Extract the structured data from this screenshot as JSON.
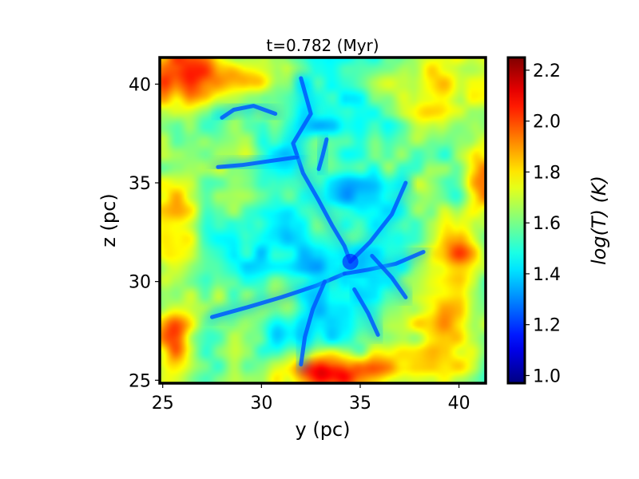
{
  "chart_data": {
    "type": "heatmap",
    "title": "t=0.782 (Myr)",
    "xlabel": "y (pc)",
    "ylabel": "z (pc)",
    "xlim": [
      24.85,
      41.35
    ],
    "ylim": [
      24.85,
      41.35
    ],
    "xticks": [
      25,
      30,
      35,
      40
    ],
    "yticks": [
      25,
      30,
      35,
      40
    ],
    "colorbar": {
      "label": "log(T) (K)",
      "range": [
        0.97,
        2.25
      ],
      "ticks": [
        "1.0",
        "1.2",
        "1.4",
        "1.6",
        "1.8",
        "2.0",
        "2.2"
      ],
      "colormap": "jet"
    },
    "field": {
      "background_logT": 1.62,
      "hot_regions": [
        {
          "y": 26.0,
          "z": 40.6,
          "sy": 2.2,
          "sz": 1.8,
          "value": 2.05
        },
        {
          "y": 33.8,
          "z": 25.4,
          "sy": 2.2,
          "sz": 1.0,
          "value": 2.2
        },
        {
          "y": 39.5,
          "z": 40.0,
          "sy": 1.5,
          "sz": 1.6,
          "value": 1.95
        },
        {
          "y": 26.0,
          "z": 33.0,
          "sy": 1.5,
          "sz": 2.0,
          "value": 1.85
        },
        {
          "y": 25.6,
          "z": 27.5,
          "sy": 1.0,
          "sz": 2.0,
          "value": 1.9
        },
        {
          "y": 39.0,
          "z": 27.5,
          "sy": 1.8,
          "sz": 1.5,
          "value": 1.95
        },
        {
          "y": 41.0,
          "z": 35.0,
          "sy": 1.0,
          "sz": 2.0,
          "value": 1.9
        },
        {
          "y": 40.0,
          "z": 31.5,
          "sy": 1.2,
          "sz": 1.0,
          "value": 1.8
        },
        {
          "y": 29.5,
          "z": 40.5,
          "sy": 1.5,
          "sz": 0.8,
          "value": 1.8
        }
      ],
      "cool_regions": [
        {
          "y": 33.0,
          "z": 37.5,
          "sy": 4.0,
          "sz": 3.0,
          "value": 1.45
        },
        {
          "y": 31.5,
          "z": 31.5,
          "sy": 3.5,
          "sz": 3.0,
          "value": 1.45
        },
        {
          "y": 36.0,
          "z": 33.0,
          "sy": 2.5,
          "sz": 3.0,
          "value": 1.48
        },
        {
          "y": 33.0,
          "z": 27.5,
          "sy": 3.0,
          "sz": 2.0,
          "value": 1.5
        }
      ],
      "filaments": [
        [
          [
            32.0,
            40.3
          ],
          [
            32.5,
            38.5
          ],
          [
            31.6,
            37.0
          ],
          [
            32.1,
            35.5
          ],
          [
            32.9,
            34.1
          ],
          [
            33.6,
            32.8
          ],
          [
            34.2,
            31.8
          ],
          [
            34.5,
            31.0
          ]
        ],
        [
          [
            34.5,
            31.0
          ],
          [
            35.5,
            32.0
          ],
          [
            36.6,
            33.4
          ],
          [
            37.3,
            35.0
          ]
        ],
        [
          [
            34.2,
            30.4
          ],
          [
            32.8,
            29.8
          ],
          [
            31.0,
            29.2
          ],
          [
            29.3,
            28.7
          ],
          [
            27.5,
            28.2
          ]
        ],
        [
          [
            34.2,
            30.4
          ],
          [
            35.4,
            30.6
          ],
          [
            36.8,
            30.9
          ],
          [
            38.2,
            31.5
          ]
        ],
        [
          [
            33.2,
            30.0
          ],
          [
            32.6,
            28.6
          ],
          [
            32.2,
            27.2
          ],
          [
            32.0,
            25.8
          ]
        ],
        [
          [
            31.8,
            36.3
          ],
          [
            30.4,
            36.1
          ],
          [
            29.0,
            35.9
          ],
          [
            27.8,
            35.8
          ]
        ],
        [
          [
            30.7,
            38.5
          ],
          [
            29.6,
            38.9
          ],
          [
            28.6,
            38.7
          ],
          [
            28.0,
            38.3
          ]
        ],
        [
          [
            33.3,
            37.2
          ],
          [
            33.1,
            36.4
          ],
          [
            32.9,
            35.7
          ]
        ],
        [
          [
            35.6,
            31.3
          ],
          [
            36.6,
            30.2
          ],
          [
            37.3,
            29.2
          ]
        ],
        [
          [
            34.7,
            29.6
          ],
          [
            35.4,
            28.4
          ],
          [
            35.9,
            27.3
          ]
        ]
      ]
    }
  }
}
